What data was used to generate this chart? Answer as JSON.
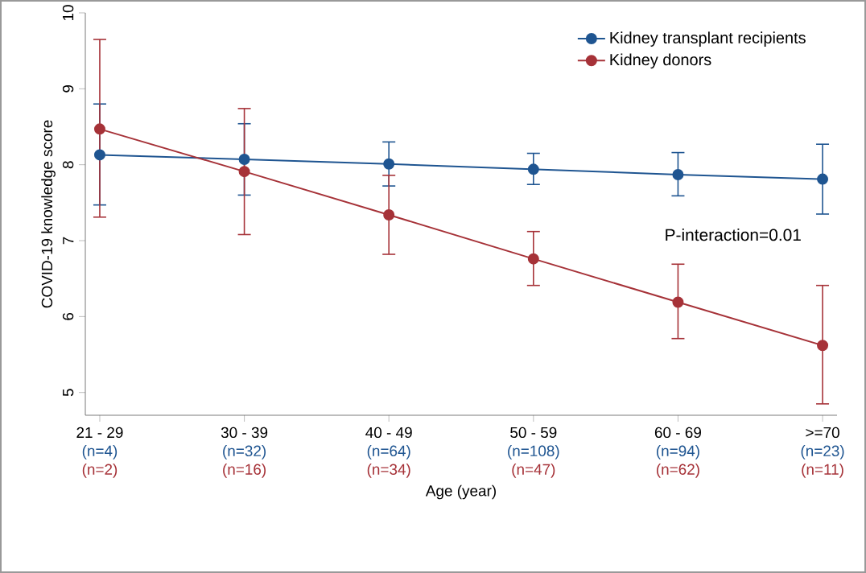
{
  "chart_data": {
    "type": "line",
    "xlabel": "Age (year)",
    "ylabel": "COVID-19 knowledge score",
    "categories": [
      "21 - 29",
      "30 - 39",
      "40 - 49",
      "50 - 59",
      "60 - 69",
      ">=70"
    ],
    "ylim": [
      4.7,
      10
    ],
    "yticks": [
      5,
      6,
      7,
      8,
      9,
      10
    ],
    "series": [
      {
        "name": "Kidney transplant recipients",
        "color": "#1f5591",
        "values": [
          8.13,
          8.07,
          8.01,
          7.94,
          7.87,
          7.81
        ],
        "errors": [
          [
            7.47,
            8.8
          ],
          [
            7.6,
            8.54
          ],
          [
            7.72,
            8.3
          ],
          [
            7.74,
            8.15
          ],
          [
            7.59,
            8.16
          ],
          [
            7.35,
            8.27
          ]
        ]
      },
      {
        "name": "Kidney donors",
        "color": "#a63238",
        "values": [
          8.47,
          7.91,
          7.34,
          6.76,
          6.19,
          5.62
        ],
        "errors": [
          [
            7.31,
            9.65
          ],
          [
            7.08,
            8.74
          ],
          [
            6.82,
            7.86
          ],
          [
            6.41,
            7.12
          ],
          [
            5.71,
            6.69
          ],
          [
            4.85,
            6.41
          ]
        ]
      }
    ],
    "marker": "circle",
    "line_style": "solid",
    "legend": "top right",
    "grid": false,
    "annotations": [
      "P-interaction=0.01",
      "(n=4)",
      "(n=32)",
      "(n=64)",
      "(n=108)",
      "(n=94)",
      "(n=23)",
      "(n=2)",
      "(n=16)",
      "(n=34)",
      "(n=47)",
      "(n=62)",
      "(n=11)"
    ]
  }
}
